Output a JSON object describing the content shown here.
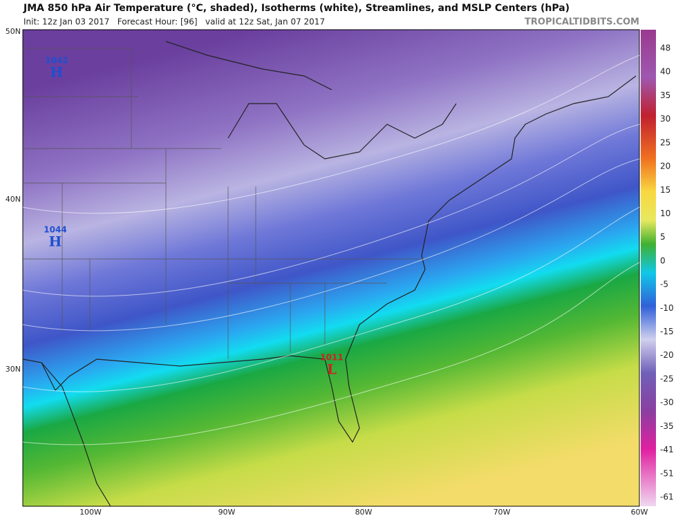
{
  "header": {
    "title": "JMA 850 hPa Air Temperature (°C, shaded), Isotherms (white), Streamlines, and MSLP Centers (hPa)",
    "subtitle": "Init: 12z Jan 03 2017   Forecast Hour: [96]   valid at 12z Sat, Jan 07 2017",
    "brand": "TROPICALTIDBITS.COM"
  },
  "map": {
    "lat_labels": [
      "50N",
      "40N",
      "30N"
    ],
    "lon_labels": [
      "100W",
      "90W",
      "80W",
      "70W",
      "60W"
    ],
    "pressure_centers": [
      {
        "value": 1042,
        "symbol": "H"
      },
      {
        "value": 1044,
        "symbol": "H"
      },
      {
        "value": 1011,
        "symbol": "L"
      }
    ]
  },
  "colorbar": {
    "labels": [
      48,
      40,
      35,
      30,
      25,
      20,
      15,
      10,
      5,
      0,
      -5,
      -10,
      -15,
      -20,
      -25,
      -30,
      -35,
      -41,
      -51,
      -61
    ]
  }
}
